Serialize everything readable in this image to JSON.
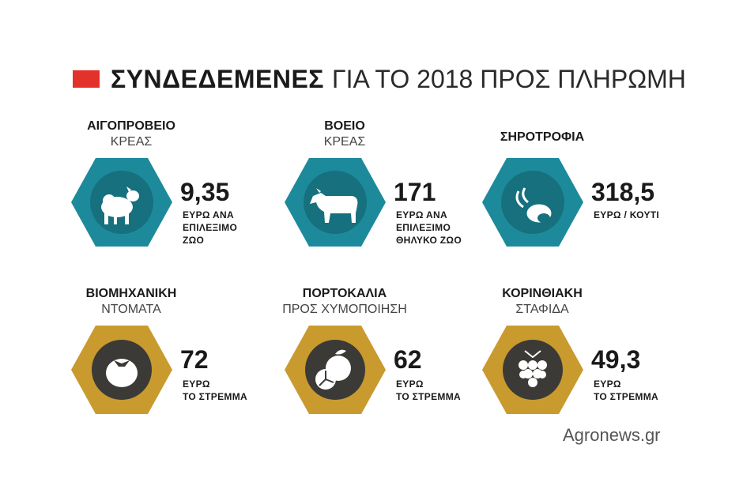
{
  "header": {
    "title_bold": "ΣΥΝΔΕΔΕΜΕΝΕΣ",
    "title_rest": "ΓΙΑ ΤΟ 2018 ΠΡΟΣ ΠΛΗΡΩΜΗ"
  },
  "colors": {
    "accent_red": "#e3312b",
    "teal": "#1d8a9b",
    "gold": "#c99a2e",
    "icon_dark": "#3b3a36"
  },
  "items": [
    {
      "cat_bold": "ΑΙΓΟΠΡΟΒΕΙΟ",
      "cat_light": "ΚΡΕΑΣ",
      "value": "9,35",
      "unit": [
        "ΕΥΡΩ ΑΝΑ",
        "ΕΠΙΛΕΞΙΜΟ",
        "ΖΩΟ"
      ],
      "icon": "sheep-goat-icon"
    },
    {
      "cat_bold": "ΒΟΕΙΟ",
      "cat_light": "ΚΡΕΑΣ",
      "value": "171",
      "unit": [
        "ΕΥΡΩ ΑΝΑ",
        "ΕΠΙΛΕΞΙΜΟ",
        "ΘΗΛΥΚΟ ΖΩΟ"
      ],
      "icon": "cow-icon"
    },
    {
      "cat_bold": "ΣΗΡΟΤΡΟΦΙΑ",
      "cat_light": "",
      "value": "318,5",
      "unit": [
        "ΕΥΡΩ / ΚΟΥΤΙ",
        "",
        ""
      ],
      "icon": "silkworm-cocoon-icon"
    },
    {
      "cat_bold": "ΒΙΟΜΗΧΑΝΙΚΗ",
      "cat_light": "ΝΤΟΜΑΤΑ",
      "value": "72",
      "unit": [
        "ΕΥΡΩ",
        "ΤΟ ΣΤΡΕΜΜΑ",
        ""
      ],
      "icon": "tomato-icon"
    },
    {
      "cat_bold": "ΠΟΡΤΟΚΑΛΙΑ",
      "cat_light": "ΠΡΟΣ ΧΥΜΟΠΟΙΗΣΗ",
      "value": "62",
      "unit": [
        "ΕΥΡΩ",
        "ΤΟ ΣΤΡΕΜΜΑ",
        ""
      ],
      "icon": "orange-icon"
    },
    {
      "cat_bold": "ΚΟΡΙΝΘΙΑΚΗ",
      "cat_light": "ΣΤΑΦΙΔΑ",
      "value": "49,3",
      "unit": [
        "ΕΥΡΩ",
        "ΤΟ ΣΤΡΕΜΜΑ",
        ""
      ],
      "icon": "grapes-icon"
    }
  ],
  "footer": {
    "source": "Agronews.gr"
  }
}
